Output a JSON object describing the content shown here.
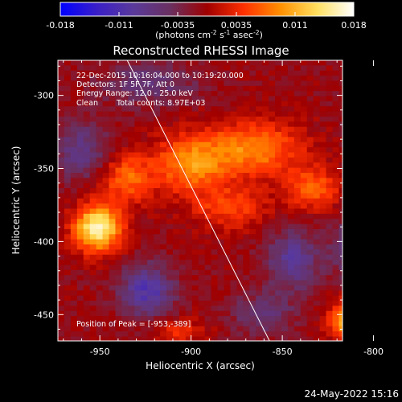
{
  "colorbar": {
    "ticks": [
      "-0.018",
      "-0.011",
      "-0.0035",
      "0.0035",
      "0.011",
      "0.018"
    ],
    "label_main": "(photons cm",
    "label_sup1": "-2",
    "label_mid1": " s",
    "label_sup2": "-1",
    "label_mid2": " asec",
    "label_sup3": "-2",
    "label_end": ")",
    "stops": [
      "#0000ff",
      "#3a1fc8",
      "#5a3a9a",
      "#6a3060",
      "#a00000",
      "#ff3000",
      "#ff9000",
      "#ffe060",
      "#ffffff"
    ]
  },
  "info": {
    "line1": "22-Dec-2015 10:16:04.000 to 10:19:20.000",
    "line2": "Detectors: 1F 5F 7F, Att 0",
    "line3": "Energy Range: 12.0 - 25.0 keV",
    "line4a": "Clean",
    "line4b": "Total counts: 8.97E+03",
    "peak": "Position of Peak = [-953,-389]"
  },
  "footer": {
    "date": "24-May-2022 15:16"
  },
  "chart_data": {
    "type": "heatmap",
    "title": "Reconstructed RHESSI Image",
    "xlabel": "Heliocentric X (arcsec)",
    "ylabel": "Heliocentric Y (arcsec)",
    "xlim": [
      -973,
      -817
    ],
    "ylim": [
      -468,
      -276
    ],
    "xticks": [
      -950,
      -900,
      -850,
      -800
    ],
    "yticks": [
      -300,
      -350,
      -400,
      -450
    ],
    "xtick_labels": [
      "-950",
      "-900",
      "-850",
      "-800"
    ],
    "ytick_labels": [
      "-300",
      "-350",
      "-400",
      "-450"
    ],
    "colorbar_range": [
      -0.018,
      0.018
    ],
    "peak_position": [
      -953,
      -389
    ],
    "limb_line": [
      [
        -935,
        -276
      ],
      [
        -857,
        -468
      ]
    ],
    "sources": [
      {
        "x": -953,
        "y": -389,
        "amp": 1.0,
        "sx": 9,
        "sy": 11
      },
      {
        "x": -937,
        "y": -355,
        "amp": 0.45,
        "sx": 10,
        "sy": 12
      },
      {
        "x": -902,
        "y": -345,
        "amp": 0.55,
        "sx": 14,
        "sy": 14
      },
      {
        "x": -867,
        "y": -335,
        "amp": 0.55,
        "sx": 18,
        "sy": 13
      },
      {
        "x": -880,
        "y": -375,
        "amp": 0.35,
        "sx": 14,
        "sy": 10
      },
      {
        "x": -835,
        "y": -362,
        "amp": 0.45,
        "sx": 10,
        "sy": 10
      },
      {
        "x": -812,
        "y": -452,
        "amp": 0.85,
        "sx": 9,
        "sy": 9
      },
      {
        "x": -908,
        "y": -460,
        "amp": 0.25,
        "sx": 10,
        "sy": 6
      },
      {
        "x": -926,
        "y": -432,
        "amp": -0.55,
        "sx": 10,
        "sy": 12
      },
      {
        "x": -846,
        "y": -411,
        "amp": -0.45,
        "sx": 10,
        "sy": 14
      },
      {
        "x": -962,
        "y": -336,
        "amp": -0.35,
        "sx": 11,
        "sy": 14
      },
      {
        "x": -813,
        "y": -403,
        "amp": -0.4,
        "sx": 8,
        "sy": 13
      },
      {
        "x": -925,
        "y": -290,
        "amp": -0.3,
        "sx": 18,
        "sy": 10
      },
      {
        "x": -862,
        "y": -448,
        "amp": -0.3,
        "sx": 12,
        "sy": 10
      },
      {
        "x": -800,
        "y": -305,
        "amp": -0.25,
        "sx": 10,
        "sy": 14
      }
    ]
  }
}
